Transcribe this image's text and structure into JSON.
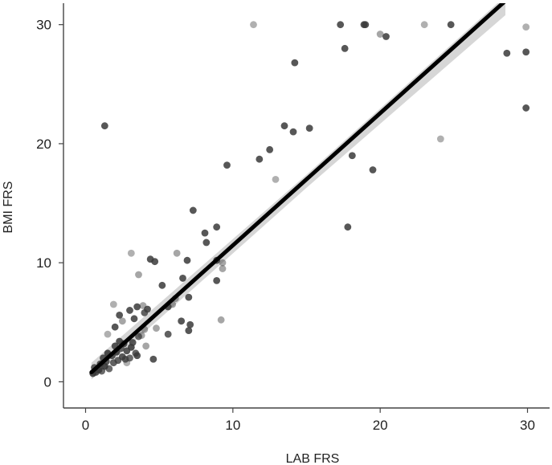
{
  "chart_data": {
    "type": "scatter",
    "xlabel": "LAB FRS",
    "ylabel": "BMI FRS",
    "xlim": [
      -1.5,
      31.5
    ],
    "ylim": [
      -2.2,
      31.8
    ],
    "x_ticks": [
      0,
      10,
      20,
      30
    ],
    "y_ticks": [
      0,
      10,
      20,
      30
    ],
    "grid": false,
    "legend": "none",
    "colors": {
      "point": "#3a3a3a",
      "fit_line": "#000000",
      "ci_band": "#c8c8c8",
      "axis": "#444444"
    },
    "fit_line": {
      "x": [
        0.4,
        28.5
      ],
      "y": [
        0.8,
        32.0
      ]
    },
    "ci_band": {
      "x": [
        0.4,
        15,
        28.5
      ],
      "upper": [
        1.6,
        17.4,
        32.4
      ],
      "lower": [
        0.2,
        16.3,
        30.8
      ]
    },
    "points": [
      {
        "x": 0.5,
        "y": 0.7,
        "a": 0.9
      },
      {
        "x": 0.7,
        "y": 0.8,
        "a": 0.85
      },
      {
        "x": 0.6,
        "y": 1.2,
        "a": 0.8
      },
      {
        "x": 0.9,
        "y": 1.0,
        "a": 0.9
      },
      {
        "x": 1.0,
        "y": 1.5,
        "a": 0.85
      },
      {
        "x": 1.1,
        "y": 0.9,
        "a": 0.75
      },
      {
        "x": 1.2,
        "y": 2.0,
        "a": 0.85
      },
      {
        "x": 1.3,
        "y": 1.3,
        "a": 0.9
      },
      {
        "x": 1.4,
        "y": 1.7,
        "a": 0.8
      },
      {
        "x": 1.5,
        "y": 2.4,
        "a": 0.9
      },
      {
        "x": 1.6,
        "y": 1.1,
        "a": 0.75
      },
      {
        "x": 1.8,
        "y": 2.2,
        "a": 0.85
      },
      {
        "x": 1.9,
        "y": 1.6,
        "a": 0.8
      },
      {
        "x": 2.0,
        "y": 3.0,
        "a": 0.85
      },
      {
        "x": 2.1,
        "y": 2.5,
        "a": 0.9
      },
      {
        "x": 2.2,
        "y": 1.8,
        "a": 0.8
      },
      {
        "x": 2.3,
        "y": 3.4,
        "a": 0.85
      },
      {
        "x": 2.4,
        "y": 2.8,
        "a": 0.75
      },
      {
        "x": 2.5,
        "y": 2.1,
        "a": 0.85
      },
      {
        "x": 2.6,
        "y": 3.2,
        "a": 0.9
      },
      {
        "x": 2.7,
        "y": 1.9,
        "a": 0.8
      },
      {
        "x": 2.8,
        "y": 2.6,
        "a": 0.85
      },
      {
        "x": 3.0,
        "y": 2.0,
        "a": 0.75
      },
      {
        "x": 3.1,
        "y": 2.9,
        "a": 0.9
      },
      {
        "x": 3.2,
        "y": 3.3,
        "a": 0.85
      },
      {
        "x": 3.4,
        "y": 2.4,
        "a": 0.8
      },
      {
        "x": 3.5,
        "y": 2.2,
        "a": 0.85
      },
      {
        "x": 3.6,
        "y": 3.8,
        "a": 0.75
      },
      {
        "x": 1.5,
        "y": 4.0,
        "a": 0.4
      },
      {
        "x": 2.0,
        "y": 4.6,
        "a": 0.85
      },
      {
        "x": 2.3,
        "y": 5.6,
        "a": 0.85
      },
      {
        "x": 2.5,
        "y": 5.1,
        "a": 0.45
      },
      {
        "x": 3.0,
        "y": 6.0,
        "a": 0.85
      },
      {
        "x": 3.5,
        "y": 6.3,
        "a": 0.85
      },
      {
        "x": 3.3,
        "y": 5.3,
        "a": 0.85
      },
      {
        "x": 4.0,
        "y": 5.8,
        "a": 0.8
      },
      {
        "x": 4.2,
        "y": 6.1,
        "a": 0.85
      },
      {
        "x": 3.9,
        "y": 6.4,
        "a": 0.45
      },
      {
        "x": 1.9,
        "y": 6.5,
        "a": 0.4
      },
      {
        "x": 2.8,
        "y": 1.6,
        "a": 0.4
      },
      {
        "x": 3.8,
        "y": 3.9,
        "a": 0.45
      },
      {
        "x": 4.1,
        "y": 3.0,
        "a": 0.45
      },
      {
        "x": 4.0,
        "y": 4.4,
        "a": 0.45
      },
      {
        "x": 4.6,
        "y": 1.9,
        "a": 0.85
      },
      {
        "x": 4.8,
        "y": 4.5,
        "a": 0.45
      },
      {
        "x": 3.1,
        "y": 10.8,
        "a": 0.4
      },
      {
        "x": 3.6,
        "y": 9.0,
        "a": 0.45
      },
      {
        "x": 4.4,
        "y": 10.3,
        "a": 0.85
      },
      {
        "x": 4.7,
        "y": 10.1,
        "a": 0.85
      },
      {
        "x": 5.2,
        "y": 8.1,
        "a": 0.85
      },
      {
        "x": 5.6,
        "y": 6.3,
        "a": 0.85
      },
      {
        "x": 5.6,
        "y": 4.0,
        "a": 0.8
      },
      {
        "x": 5.9,
        "y": 6.5,
        "a": 0.45
      },
      {
        "x": 6.1,
        "y": 7.0,
        "a": 0.45
      },
      {
        "x": 6.2,
        "y": 10.8,
        "a": 0.45
      },
      {
        "x": 6.6,
        "y": 8.7,
        "a": 0.85
      },
      {
        "x": 6.5,
        "y": 5.1,
        "a": 0.85
      },
      {
        "x": 6.9,
        "y": 10.2,
        "a": 0.85
      },
      {
        "x": 7.0,
        "y": 7.1,
        "a": 0.85
      },
      {
        "x": 7.0,
        "y": 4.3,
        "a": 0.85
      },
      {
        "x": 7.1,
        "y": 4.8,
        "a": 0.85
      },
      {
        "x": 7.3,
        "y": 14.4,
        "a": 0.85
      },
      {
        "x": 8.1,
        "y": 12.5,
        "a": 0.85
      },
      {
        "x": 8.2,
        "y": 11.7,
        "a": 0.85
      },
      {
        "x": 8.9,
        "y": 13.0,
        "a": 0.85
      },
      {
        "x": 8.9,
        "y": 10.2,
        "a": 0.85
      },
      {
        "x": 8.9,
        "y": 8.5,
        "a": 0.85
      },
      {
        "x": 9.2,
        "y": 5.2,
        "a": 0.45
      },
      {
        "x": 9.3,
        "y": 10.0,
        "a": 0.45
      },
      {
        "x": 9.3,
        "y": 9.5,
        "a": 0.45
      },
      {
        "x": 9.6,
        "y": 18.2,
        "a": 0.85
      },
      {
        "x": 1.3,
        "y": 21.5,
        "a": 0.85
      },
      {
        "x": 11.4,
        "y": 30.0,
        "a": 0.4
      },
      {
        "x": 11.8,
        "y": 18.7,
        "a": 0.85
      },
      {
        "x": 12.5,
        "y": 19.5,
        "a": 0.85
      },
      {
        "x": 12.9,
        "y": 17.0,
        "a": 0.4
      },
      {
        "x": 13.5,
        "y": 21.5,
        "a": 0.85
      },
      {
        "x": 14.1,
        "y": 21.0,
        "a": 0.85
      },
      {
        "x": 14.2,
        "y": 26.8,
        "a": 0.85
      },
      {
        "x": 15.2,
        "y": 21.3,
        "a": 0.85
      },
      {
        "x": 17.3,
        "y": 30.0,
        "a": 0.85
      },
      {
        "x": 17.6,
        "y": 28.0,
        "a": 0.85
      },
      {
        "x": 17.8,
        "y": 13.0,
        "a": 0.85
      },
      {
        "x": 18.1,
        "y": 19.0,
        "a": 0.85
      },
      {
        "x": 18.9,
        "y": 30.0,
        "a": 0.85
      },
      {
        "x": 19.0,
        "y": 30.0,
        "a": 0.85
      },
      {
        "x": 19.5,
        "y": 17.8,
        "a": 0.85
      },
      {
        "x": 20.0,
        "y": 29.2,
        "a": 0.45
      },
      {
        "x": 20.4,
        "y": 29.0,
        "a": 0.85
      },
      {
        "x": 23.0,
        "y": 30.0,
        "a": 0.4
      },
      {
        "x": 24.1,
        "y": 20.4,
        "a": 0.4
      },
      {
        "x": 24.8,
        "y": 30.0,
        "a": 0.85
      },
      {
        "x": 28.6,
        "y": 27.6,
        "a": 0.85
      },
      {
        "x": 29.9,
        "y": 27.7,
        "a": 0.85
      },
      {
        "x": 29.9,
        "y": 23.0,
        "a": 0.85
      },
      {
        "x": 29.9,
        "y": 29.8,
        "a": 0.4
      }
    ]
  }
}
